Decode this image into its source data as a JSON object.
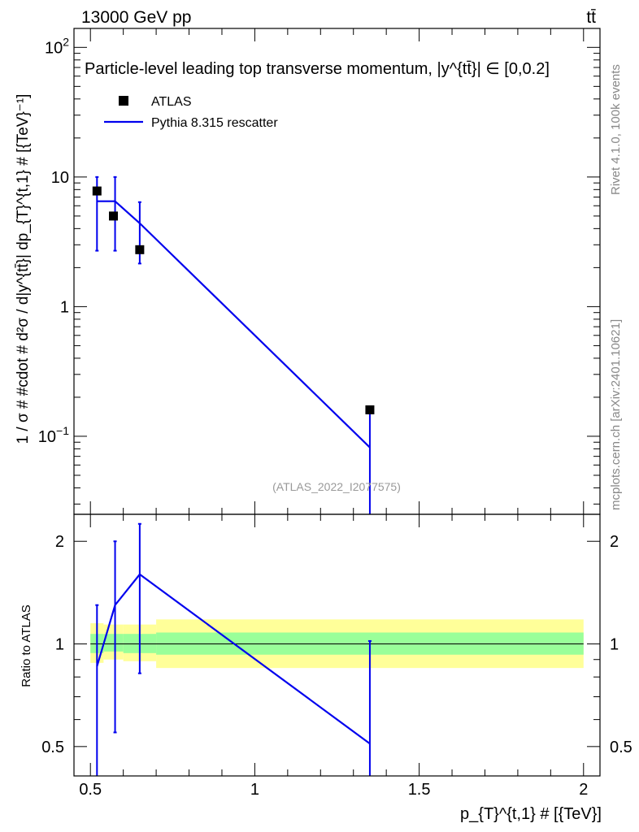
{
  "header": {
    "energy_label": "13000 GeV pp",
    "process_label": "tt̄"
  },
  "side_labels": {
    "rivet": "Rivet 4.1.0,  100k events",
    "mcplots": "mcplots.cern.ch [arXiv:2401.10621]"
  },
  "colors": {
    "mc": "#0000ee",
    "band_inner": "#99ff99",
    "band_outer": "#ffff99",
    "data": "#000000"
  },
  "chart_data": [
    {
      "type": "line",
      "panel": "main",
      "title": "Particle-level leading top transverse momentum, |y^{tt̄}| ∈ [0,0.2]",
      "ylabel": "1 / σ # #cdot # d²σ / d|y^{tt̄}| dp_{T}^{t,1} # [{TeV}⁻¹]",
      "yscale": "log",
      "ylim": [
        0.025,
        140
      ],
      "xlim": [
        0.45,
        2.05
      ],
      "y_ticks": [
        {
          "value": 0.1,
          "base": "10",
          "exp": "−1"
        },
        {
          "value": 1,
          "label": "1"
        },
        {
          "value": 10,
          "label": "10"
        },
        {
          "value": 100,
          "base": "10",
          "exp": "2"
        }
      ],
      "watermark": "(ATLAS_2022_I2077575)",
      "legend": [
        {
          "name": "ATLAS",
          "style": "marker"
        },
        {
          "name": "Pythia 8.315 rescatter",
          "style": "line"
        }
      ],
      "atlas": {
        "x": [
          0.52,
          0.57,
          0.65,
          1.35
        ],
        "y": [
          7.8,
          5.0,
          2.75,
          0.16
        ]
      },
      "pythia": {
        "x": [
          0.52,
          0.575,
          0.65,
          1.35
        ],
        "y": [
          6.5,
          6.5,
          4.4,
          0.082
        ],
        "err_low": [
          2.7,
          2.7,
          2.15,
          0.025
        ],
        "err_high": [
          10.0,
          10.0,
          6.4,
          0.155
        ]
      }
    },
    {
      "type": "line",
      "panel": "ratio",
      "ylabel": "Ratio to ATLAS",
      "yscale": "log",
      "ylim": [
        0.41,
        2.4
      ],
      "xlim": [
        0.45,
        2.05
      ],
      "y_ticks": [
        0.5,
        1,
        2
      ],
      "xlabel": "p_{T}^{t,1} # [{TeV}]",
      "x_ticks": [
        0.5,
        1,
        1.5,
        2
      ],
      "ref_line": 1,
      "bands": [
        {
          "x0": 0.5,
          "x1": 0.54,
          "inner": [
            0.94,
            1.07
          ],
          "outer": [
            0.88,
            1.15
          ]
        },
        {
          "x0": 0.54,
          "x1": 0.6,
          "inner": [
            0.95,
            1.07
          ],
          "outer": [
            0.9,
            1.14
          ]
        },
        {
          "x0": 0.6,
          "x1": 0.7,
          "inner": [
            0.94,
            1.07
          ],
          "outer": [
            0.89,
            1.14
          ]
        },
        {
          "x0": 0.7,
          "x1": 2.0,
          "inner": [
            0.93,
            1.08
          ],
          "outer": [
            0.85,
            1.18
          ]
        }
      ],
      "pythia": {
        "x": [
          0.52,
          0.575,
          0.65,
          1.35
        ],
        "y": [
          0.86,
          1.3,
          1.6,
          0.51
        ],
        "err_low": [
          0.3,
          0.55,
          0.82,
          0.3
        ],
        "err_high": [
          1.3,
          2.0,
          2.25,
          1.02
        ]
      }
    }
  ]
}
